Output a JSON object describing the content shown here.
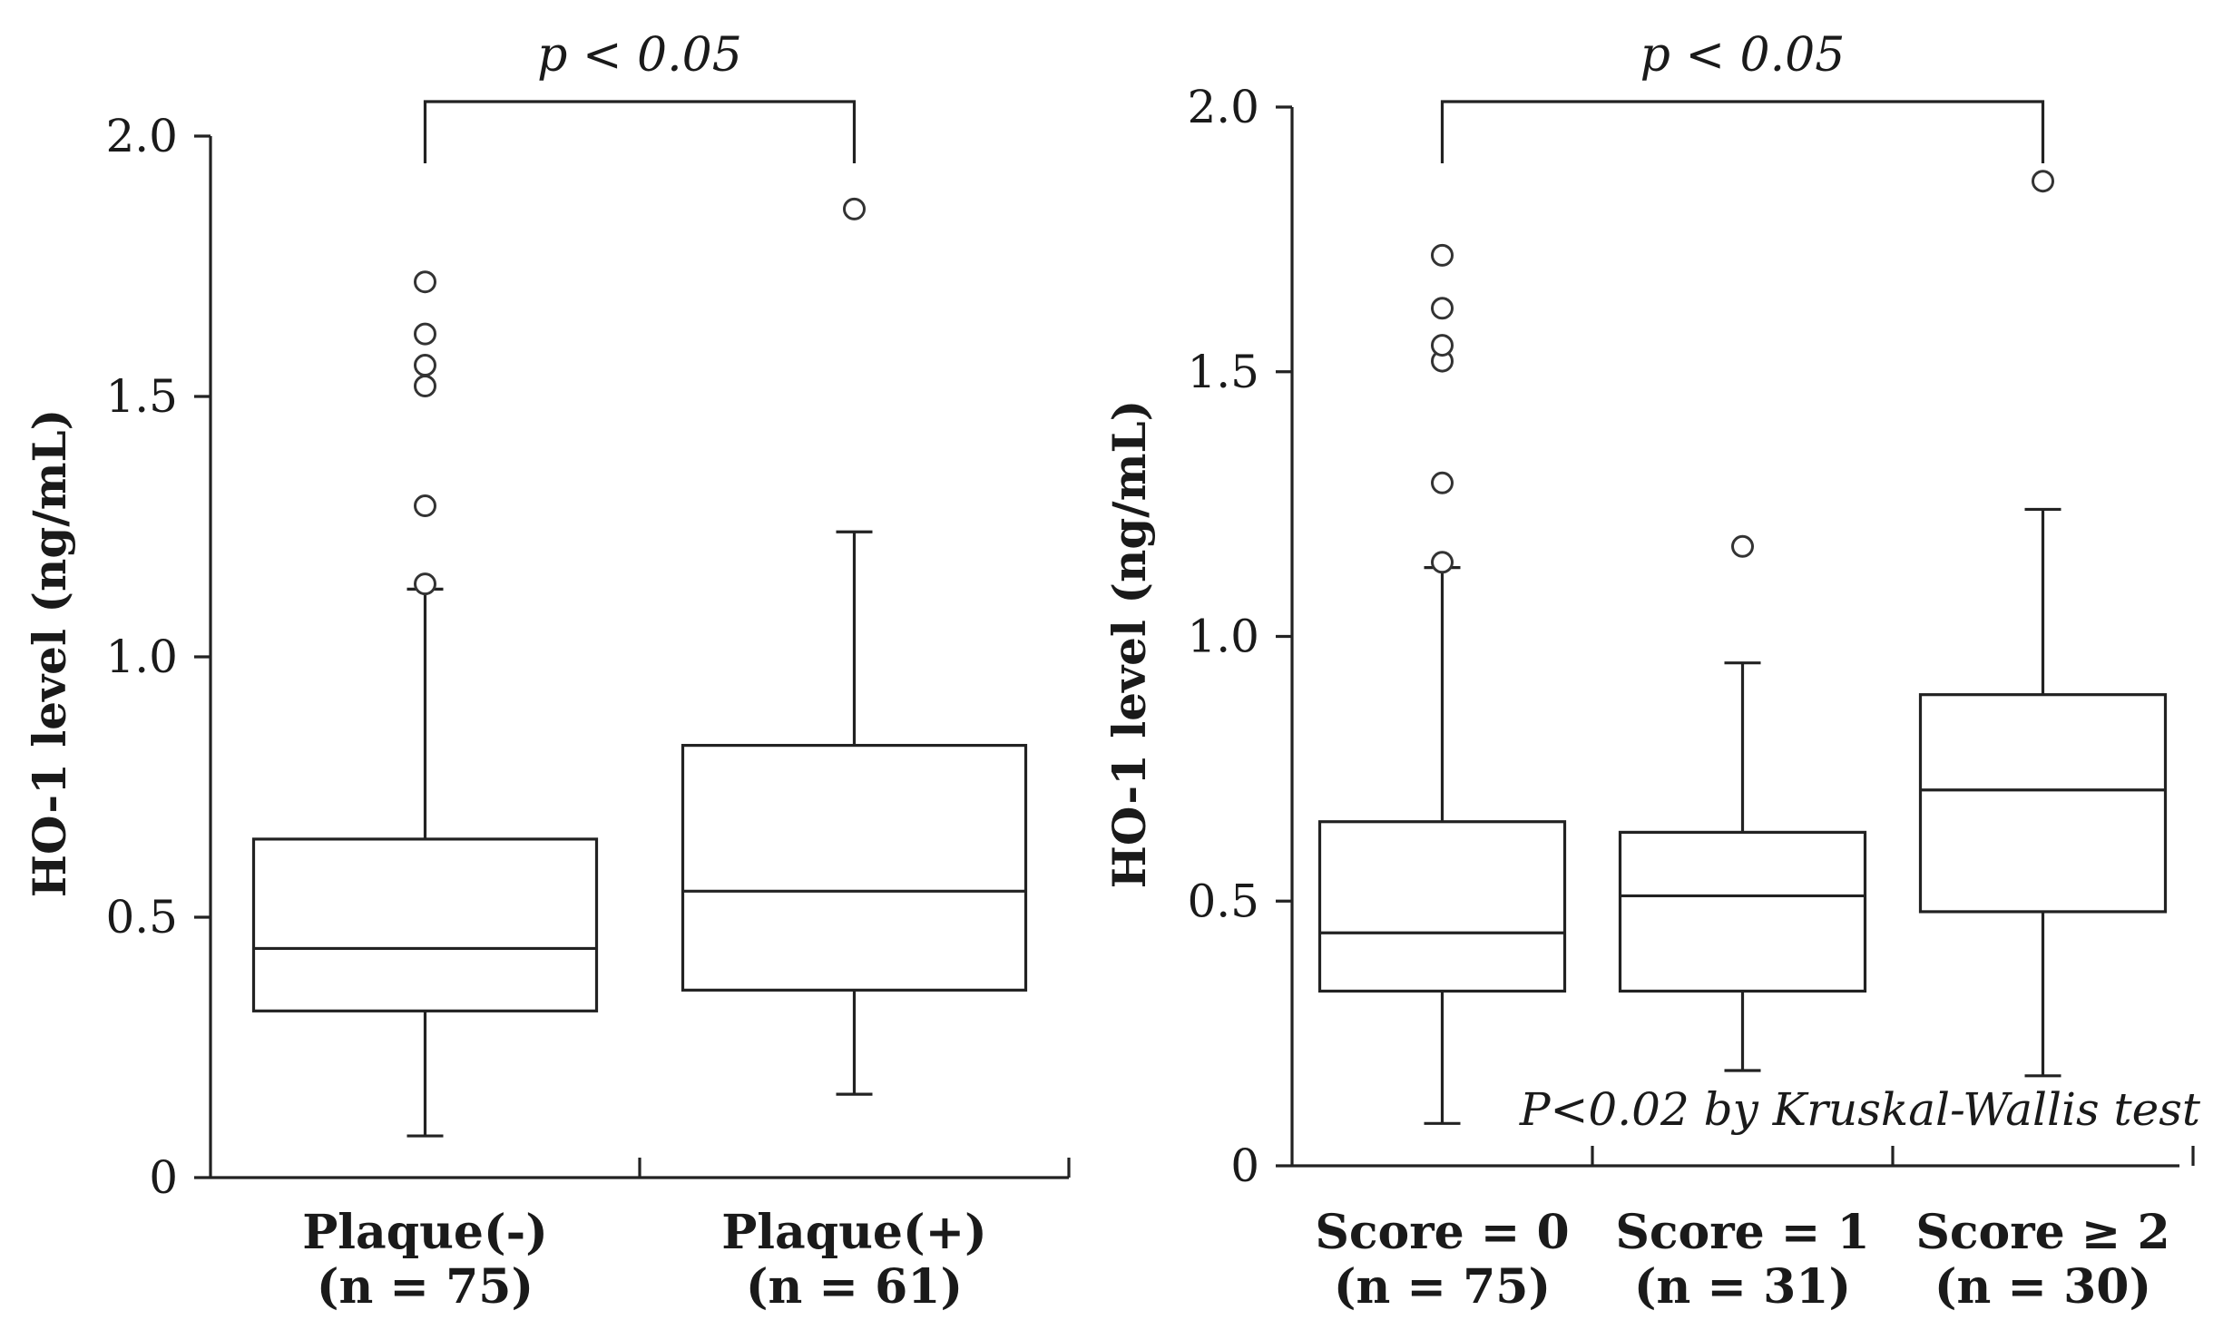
{
  "chart_data": [
    {
      "type": "box",
      "ylabel": "HO-1 level (ng/mL)",
      "ylim": [
        0,
        2.0
      ],
      "yticks": [
        "0",
        "0.5",
        "1.0",
        "1.5",
        "2.0"
      ],
      "categories": [
        {
          "label": "Plaque(-)",
          "n_label": "(n = 75)"
        },
        {
          "label": "Plaque(+)",
          "n_label": "(n = 61)"
        }
      ],
      "boxes": [
        {
          "min": 0.08,
          "q1": 0.32,
          "median": 0.44,
          "q3": 0.65,
          "max": 1.13,
          "outliers": [
            1.14,
            1.29,
            1.52,
            1.56,
            1.62,
            1.72
          ]
        },
        {
          "min": 0.16,
          "q1": 0.36,
          "median": 0.55,
          "q3": 0.83,
          "max": 1.24,
          "outliers": [
            1.86
          ]
        }
      ],
      "significance": {
        "text": "p < 0.05",
        "from": 0,
        "to": 1
      }
    },
    {
      "type": "box",
      "ylabel": "HO-1 level (ng/mL)",
      "ylim": [
        0,
        2.0
      ],
      "yticks": [
        "0",
        "0.5",
        "1.0",
        "1.5",
        "2.0"
      ],
      "categories": [
        {
          "label": "Score = 0",
          "n_label": "(n = 75)"
        },
        {
          "label": "Score = 1",
          "n_label": "(n = 31)"
        },
        {
          "label": "Score ≥ 2",
          "n_label": "(n = 30)"
        }
      ],
      "boxes": [
        {
          "min": 0.08,
          "q1": 0.33,
          "median": 0.44,
          "q3": 0.65,
          "max": 1.13,
          "outliers": [
            1.14,
            1.29,
            1.52,
            1.55,
            1.62,
            1.72
          ]
        },
        {
          "min": 0.18,
          "q1": 0.33,
          "median": 0.51,
          "q3": 0.63,
          "max": 0.95,
          "outliers": [
            1.17
          ]
        },
        {
          "min": 0.17,
          "q1": 0.48,
          "median": 0.71,
          "q3": 0.89,
          "max": 1.24,
          "outliers": [
            1.86
          ]
        }
      ],
      "significance": {
        "text": "p < 0.05",
        "from": 0,
        "to": 2
      },
      "note": "P<0.02 by Kruskal-Wallis test"
    }
  ]
}
